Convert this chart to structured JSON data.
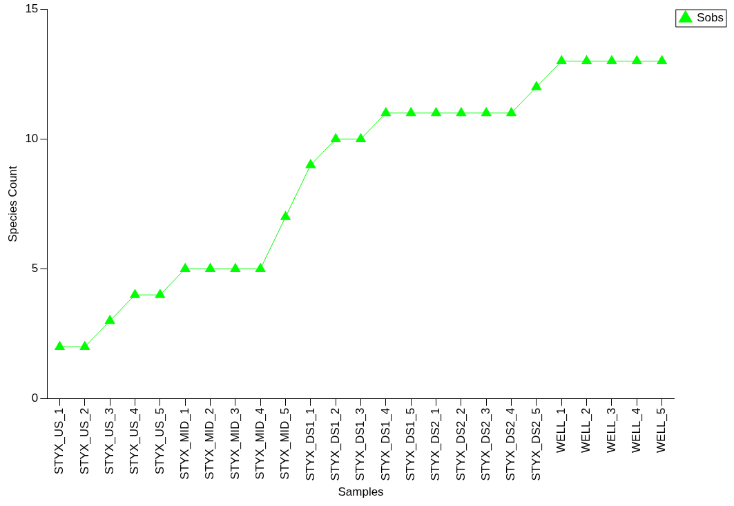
{
  "chart_data": {
    "type": "line",
    "xlabel": "Samples",
    "ylabel": "Species Count",
    "categories": [
      "STYX_US_1",
      "STYX_US_2",
      "STYX_US_3",
      "STYX_US_4",
      "STYX_US_5",
      "STYX_MID_1",
      "STYX_MID_2",
      "STYX_MID_3",
      "STYX_MID_4",
      "STYX_MID_5",
      "STYX_DS1_1",
      "STYX_DS1_2",
      "STYX_DS1_3",
      "STYX_DS1_4",
      "STYX_DS1_5",
      "STYX_DS2_1",
      "STYX_DS2_2",
      "STYX_DS2_3",
      "STYX_DS2_4",
      "STYX_DS2_5",
      "WELL_1",
      "WELL_2",
      "WELL_3",
      "WELL_4",
      "WELL_5"
    ],
    "series": [
      {
        "name": "Sobs",
        "color": "#00ff00",
        "values": [
          2,
          2,
          3,
          4,
          4,
          5,
          5,
          5,
          5,
          7,
          9,
          10,
          10,
          11,
          11,
          11,
          11,
          11,
          11,
          12,
          13,
          13,
          13,
          13,
          13
        ]
      }
    ],
    "ylim": [
      0,
      15
    ],
    "yticks": [
      0,
      5,
      10,
      15
    ],
    "grid": false,
    "legend": "top right",
    "marker": "triangle",
    "line_style": "solid"
  }
}
